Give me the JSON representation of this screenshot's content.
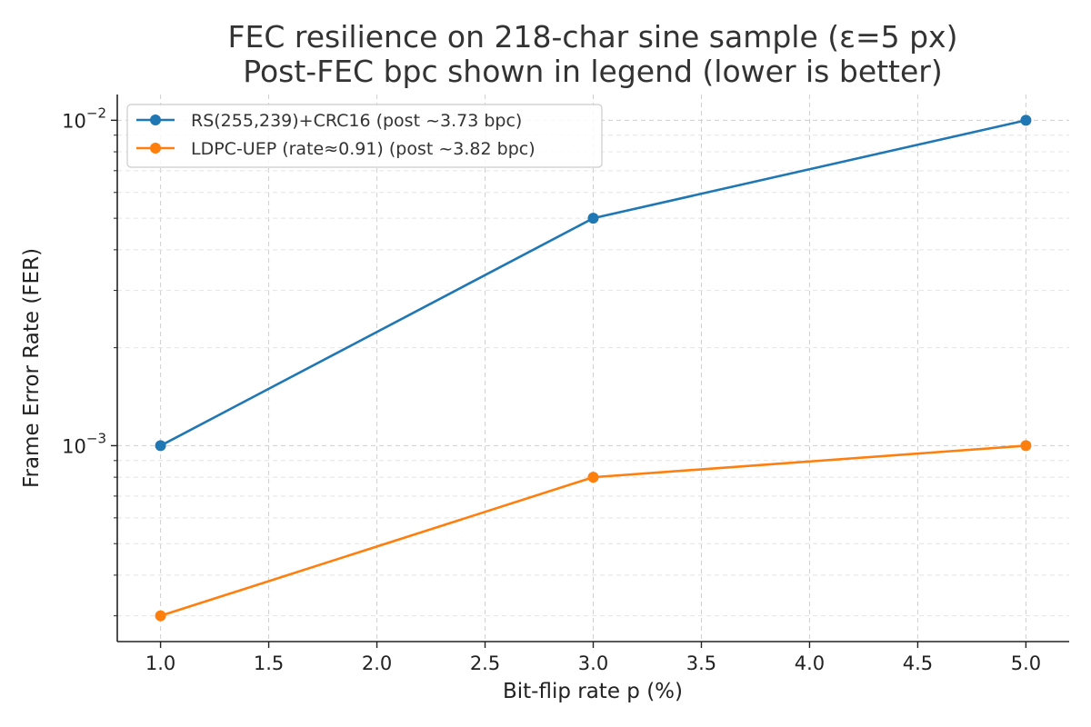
{
  "chart_data": {
    "type": "line",
    "title_lines": [
      "FEC resilience on 218-char sine sample (ε=5 px)",
      "Post-FEC bpc shown in legend (lower is better)"
    ],
    "xlabel": "Bit-flip rate p (%)",
    "ylabel": "Frame Error Rate (FER)",
    "x_scale": "linear",
    "y_scale": "log",
    "xlim": [
      0.8,
      5.2
    ],
    "ylim": [
      0.00025,
      0.012
    ],
    "x_ticks": [
      1.0,
      1.5,
      2.0,
      2.5,
      3.0,
      3.5,
      4.0,
      4.5,
      5.0
    ],
    "x_tick_labels": [
      "1.0",
      "1.5",
      "2.0",
      "2.5",
      "3.0",
      "3.5",
      "4.0",
      "4.5",
      "5.0"
    ],
    "y_major_ticks": [
      {
        "value": 0.001,
        "base": "10",
        "exp": "−3"
      },
      {
        "value": 0.01,
        "base": "10",
        "exp": "−2"
      }
    ],
    "grid": true,
    "legend_position": "upper-left",
    "series": [
      {
        "name": "RS(255,239)+CRC16 (post ~3.73 bpc)",
        "color": "#1f77b4",
        "marker": "circle",
        "x": [
          1.0,
          3.0,
          5.0
        ],
        "y": [
          0.001,
          0.005,
          0.01
        ]
      },
      {
        "name": "LDPC-UEP (rate≈0.91) (post ~3.82 bpc)",
        "color": "#ff7f0e",
        "marker": "circle",
        "x": [
          1.0,
          3.0,
          5.0
        ],
        "y": [
          0.0003,
          0.0008,
          0.001
        ]
      }
    ]
  }
}
